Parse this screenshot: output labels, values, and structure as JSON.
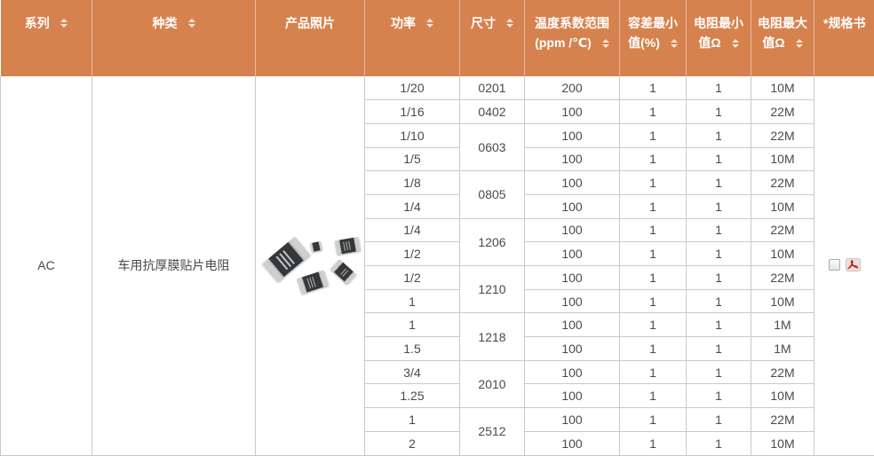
{
  "table": {
    "columns": [
      {
        "label": "系列",
        "sortable": true
      },
      {
        "label": "种类",
        "sortable": true
      },
      {
        "label": "产品照片",
        "sortable": false
      },
      {
        "label": "功率",
        "sortable": true
      },
      {
        "label": "尺寸",
        "sortable": true
      },
      {
        "label": "温度系数范围(ppm /℃)",
        "sortable": true
      },
      {
        "label": "容差最小值(%)",
        "sortable": true
      },
      {
        "label": "电阻最小值Ω",
        "sortable": true
      },
      {
        "label": "电阻最大值Ω",
        "sortable": true
      },
      {
        "label": "*规格书",
        "sortable": false
      }
    ],
    "series": "AC",
    "category": "车用抗厚膜贴片电阻",
    "photo": {
      "name": "chip-resistors-photo",
      "resistor_count": 5
    },
    "rows": [
      {
        "power": "1/20",
        "size": "0201",
        "size_span": 1,
        "tcr": "200",
        "tolerance_min": "1",
        "res_min": "1",
        "res_max": "10M"
      },
      {
        "power": "1/16",
        "size": "0402",
        "size_span": 1,
        "tcr": "100",
        "tolerance_min": "1",
        "res_min": "1",
        "res_max": "22M"
      },
      {
        "power": "1/10",
        "size": "0603",
        "size_span": 2,
        "tcr": "100",
        "tolerance_min": "1",
        "res_min": "1",
        "res_max": "22M"
      },
      {
        "power": "1/5",
        "tcr": "100",
        "tolerance_min": "1",
        "res_min": "1",
        "res_max": "10M"
      },
      {
        "power": "1/8",
        "size": "0805",
        "size_span": 2,
        "tcr": "100",
        "tolerance_min": "1",
        "res_min": "1",
        "res_max": "22M"
      },
      {
        "power": "1/4",
        "tcr": "100",
        "tolerance_min": "1",
        "res_min": "1",
        "res_max": "10M"
      },
      {
        "power": "1/4",
        "size": "1206",
        "size_span": 2,
        "tcr": "100",
        "tolerance_min": "1",
        "res_min": "1",
        "res_max": "22M"
      },
      {
        "power": "1/2",
        "tcr": "100",
        "tolerance_min": "1",
        "res_min": "1",
        "res_max": "10M"
      },
      {
        "power": "1/2",
        "size": "1210",
        "size_span": 2,
        "tcr": "100",
        "tolerance_min": "1",
        "res_min": "1",
        "res_max": "22M"
      },
      {
        "power": "1",
        "tcr": "100",
        "tolerance_min": "1",
        "res_min": "1",
        "res_max": "10M"
      },
      {
        "power": "1",
        "size": "1218",
        "size_span": 2,
        "tcr": "100",
        "tolerance_min": "1",
        "res_min": "1",
        "res_max": "1M"
      },
      {
        "power": "1.5",
        "tcr": "100",
        "tolerance_min": "1",
        "res_min": "1",
        "res_max": "1M"
      },
      {
        "power": "3/4",
        "size": "2010",
        "size_span": 2,
        "tcr": "100",
        "tolerance_min": "1",
        "res_min": "1",
        "res_max": "22M"
      },
      {
        "power": "1.25",
        "tcr": "100",
        "tolerance_min": "1",
        "res_min": "1",
        "res_max": "10M"
      },
      {
        "power": "1",
        "size": "2512",
        "size_span": 2,
        "tcr": "100",
        "tolerance_min": "1",
        "res_min": "1",
        "res_max": "22M"
      },
      {
        "power": "2",
        "tcr": "100",
        "tolerance_min": "1",
        "res_min": "1",
        "res_max": "10M"
      }
    ],
    "spec_sheet": {
      "checkbox_checked": false,
      "pdf_icon": "pdf-icon"
    }
  },
  "colors": {
    "header_bg": "#d6824f",
    "header_text": "#ffffff",
    "sort_icon": "#f6e7d2",
    "row_border": "#c9c9c9",
    "body_text": "#4a4a4a",
    "pdf_red": "#c0281c"
  }
}
